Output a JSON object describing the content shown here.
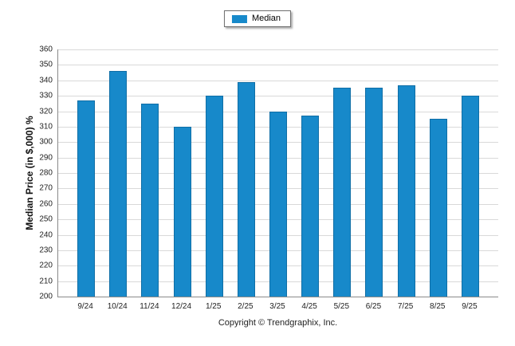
{
  "legend": {
    "label": "Median",
    "color": "#1789CA"
  },
  "footer": {
    "copyright": "Copyright © Trendgraphix, Inc."
  },
  "chart_data": {
    "type": "bar",
    "title": "",
    "categories": [
      "9/24",
      "10/24",
      "11/24",
      "12/24",
      "1/25",
      "2/25",
      "3/25",
      "4/25",
      "5/25",
      "6/25",
      "7/25",
      "8/25",
      "9/25"
    ],
    "values": [
      327,
      346,
      325,
      310,
      330,
      339,
      320,
      317,
      335,
      335,
      337,
      315,
      330
    ],
    "series_name": "Median",
    "xlabel": "",
    "ylabel": "Median Price (in $,000) %",
    "ylim": [
      200,
      360
    ],
    "ytick_step": 10,
    "grid": true,
    "legend_position": "top-center",
    "bar_color": "#1789CA",
    "bar_border_color": "#0f6ea6"
  }
}
